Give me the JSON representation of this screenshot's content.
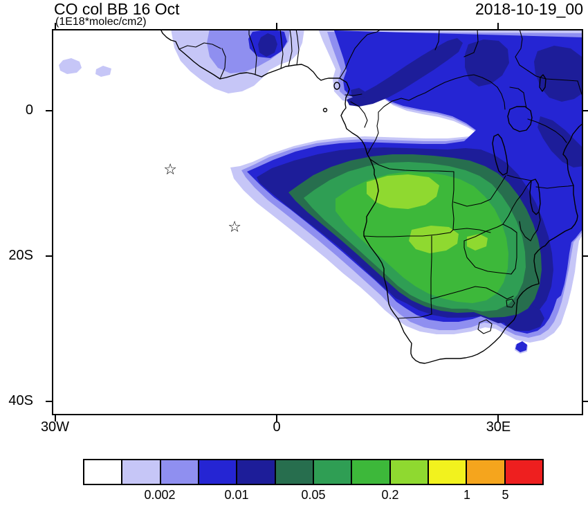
{
  "header": {
    "title": "CO col BB 16 Oct",
    "subtitle": "(1E18*molec/cm2)",
    "date": "2018-10-19_00"
  },
  "axes": {
    "x_ticks": [
      {
        "label": "30W",
        "lon": -30
      },
      {
        "label": "0",
        "lon": 0
      },
      {
        "label": "30E",
        "lon": 30
      }
    ],
    "y_ticks": [
      {
        "label": "0",
        "lat": 0
      },
      {
        "label": "20S",
        "lat": -20
      },
      {
        "label": "40S",
        "lat": -40
      }
    ]
  },
  "colorbar": {
    "colors": [
      "#ffffff",
      "#c6c6f7",
      "#8f8ff0",
      "#2525d3",
      "#1d1d99",
      "#276e4e",
      "#2f9e54",
      "#3db83a",
      "#8fd930",
      "#f2f21e",
      "#f5a51d",
      "#ee1f1f"
    ],
    "labels": [
      {
        "text": "0.002",
        "boundary": 2
      },
      {
        "text": "0.01",
        "boundary": 4
      },
      {
        "text": "0.05",
        "boundary": 6
      },
      {
        "text": "0.2",
        "boundary": 8
      },
      {
        "text": "1",
        "boundary": 10
      },
      {
        "text": "5",
        "boundary": 11
      }
    ]
  },
  "chart_data": {
    "type": "heatmap",
    "title": "CO col BB 16 Oct",
    "units": "1E18*molec/cm2",
    "time_label": "2018-10-19_00",
    "projection": "lat-lon map of Africa and South Atlantic",
    "domain": {
      "lon_min": -30.4,
      "lon_max": 41.5,
      "lat_min": -41.9,
      "lat_max": 11.2
    },
    "colorbar_labeled_levels": [
      0.002,
      0.01,
      0.05,
      0.2,
      1,
      5
    ],
    "palette": [
      "#ffffff",
      "#c6c6f7",
      "#8f8ff0",
      "#2525d3",
      "#1d1d99",
      "#276e4e",
      "#2f9e54",
      "#3db83a",
      "#8fd930",
      "#f2f21e",
      "#f5a51d",
      "#ee1f1f"
    ],
    "markers": [
      {
        "type": "open-star",
        "char": "☆",
        "lon": -14.4,
        "lat": -8.0
      },
      {
        "type": "open-star",
        "char": "☆",
        "lon": -5.7,
        "lat": -15.9
      }
    ],
    "features": [
      {
        "name": "main-biomass-burning-plume",
        "description": "Broad CO maximum (~0.2-1 x1E18 molec/cm2) centered over Angola/DRC/Zambia, extending west over the South Atlantic to ~15W near 8-16S and southeast across Zimbabwe/Mozambique to ~27S"
      },
      {
        "name": "northern-band",
        "description": "Secondary band (~0.005-0.05) stretching across the Sahel/Sudan/Ethiopia/Kenya region near 0-11N, strongest between 15E and 40E"
      },
      {
        "name": "west-african-coastal-patch",
        "description": "Small enhanced patches (~0.002-0.05) near the Guinea/Ghana coast around 15W-5E, 4-11N"
      },
      {
        "name": "south-africa-patch",
        "description": "Detached enhancement (~0.01) over eastern South Africa / southern Mozambique near 25-33E, 25-30S"
      }
    ]
  }
}
